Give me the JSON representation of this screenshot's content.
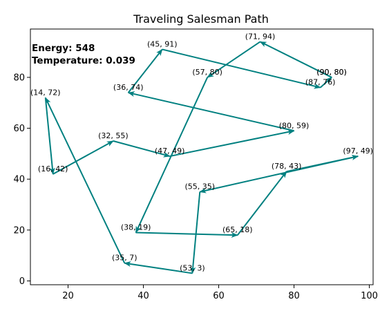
{
  "chart_data": {
    "type": "line",
    "title": "Traveling Salesman Path",
    "xlabel": "",
    "ylabel": "",
    "xlim": [
      10,
      101
    ],
    "ylim": [
      -1.5,
      99
    ],
    "xticks": [
      20,
      40,
      60,
      80,
      100
    ],
    "yticks": [
      0,
      20,
      40,
      60,
      80
    ],
    "grid": false,
    "line_color": "#008080",
    "annotations": [
      {
        "label": "Energy: 548"
      },
      {
        "label": "Temperature: 0.039"
      }
    ],
    "series": [
      {
        "points": [
          {
            "x": 90,
            "y": 80,
            "label": "(90, 80)"
          },
          {
            "x": 71,
            "y": 94,
            "label": "(71, 94)"
          },
          {
            "x": 57,
            "y": 80,
            "label": "(57, 80)"
          },
          {
            "x": 38,
            "y": 19,
            "label": "(38, 19)"
          },
          {
            "x": 65,
            "y": 18,
            "label": "(65, 18)"
          },
          {
            "x": 78,
            "y": 43,
            "label": "(78, 43)"
          },
          {
            "x": 97,
            "y": 49,
            "label": "(97, 49)"
          },
          {
            "x": 55,
            "y": 35,
            "label": "(55, 35)"
          },
          {
            "x": 53,
            "y": 3,
            "label": "(53, 3)"
          },
          {
            "x": 35,
            "y": 7,
            "label": "(35, 7)"
          },
          {
            "x": 14,
            "y": 72,
            "label": "(14, 72)"
          },
          {
            "x": 16,
            "y": 42,
            "label": "(16, 42)"
          },
          {
            "x": 32,
            "y": 55,
            "label": "(32, 55)"
          },
          {
            "x": 47,
            "y": 49,
            "label": "(47, 49)"
          },
          {
            "x": 80,
            "y": 59,
            "label": "(80, 59)"
          },
          {
            "x": 36,
            "y": 74,
            "label": "(36, 74)"
          },
          {
            "x": 45,
            "y": 91,
            "label": "(45, 91)"
          },
          {
            "x": 87,
            "y": 76,
            "label": "(87, 76)"
          },
          {
            "x": 90,
            "y": 80,
            "label": "(90, 80)"
          }
        ]
      }
    ]
  }
}
